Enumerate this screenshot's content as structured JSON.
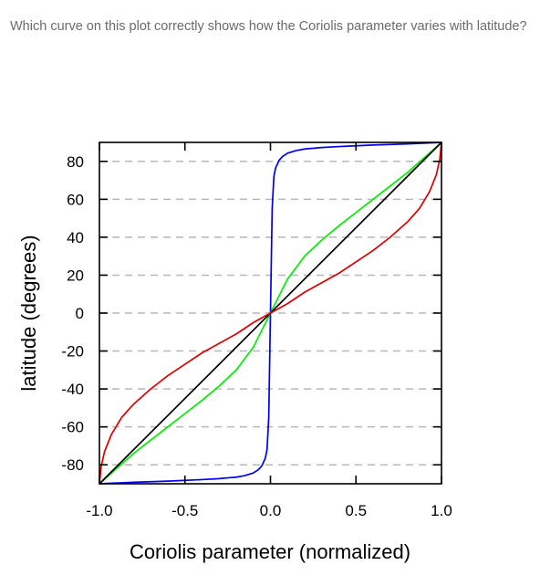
{
  "question": "Which curve on this plot correctly shows how the Coriolis parameter varies with latitude?",
  "chart_data": {
    "type": "line",
    "title": "",
    "xlabel": "Coriolis parameter (normalized)",
    "ylabel": "latitude (degrees)",
    "xlim": [
      -1.0,
      1.0
    ],
    "ylim": [
      -90,
      90
    ],
    "x_ticks": [
      -1.0,
      -0.5,
      0.0,
      0.5,
      1.0
    ],
    "x_tick_labels": [
      "-1.0",
      "-0.5",
      "0.0",
      "0.5",
      "1.0"
    ],
    "y_ticks": [
      -80,
      -60,
      -40,
      -20,
      0,
      20,
      40,
      60,
      80
    ],
    "y_tick_labels": [
      "-80",
      "-60",
      "-40",
      "-20",
      "0",
      "20",
      "40",
      "60",
      "80"
    ],
    "grid": "horizontal dashed",
    "series": [
      {
        "color": "#0000ee",
        "x": [
          -1.0,
          -0.8,
          -0.6,
          -0.4,
          -0.3,
          -0.2,
          -0.15,
          -0.1,
          -0.07,
          -0.05,
          -0.03,
          -0.02,
          -0.01,
          0.0,
          0.01,
          0.02,
          0.03,
          0.05,
          0.07,
          0.1,
          0.15,
          0.2,
          0.3,
          0.4,
          0.6,
          0.8,
          1.0
        ],
        "y": [
          -90,
          -89.2,
          -88.6,
          -87.8,
          -87.3,
          -86.5,
          -85.7,
          -84.3,
          -82.5,
          -80.5,
          -76.5,
          -72,
          -55,
          0,
          55,
          72,
          76.5,
          80.5,
          82.5,
          84.3,
          85.7,
          86.5,
          87.3,
          87.8,
          88.6,
          89.2,
          90
        ]
      },
      {
        "color": "#00ee00",
        "x": [
          -1.0,
          -0.9,
          -0.8,
          -0.7,
          -0.6,
          -0.5,
          -0.4,
          -0.3,
          -0.2,
          -0.1,
          0.0,
          0.1,
          0.2,
          0.3,
          0.4,
          0.5,
          0.6,
          0.7,
          0.8,
          0.9,
          1.0
        ],
        "y": [
          -90,
          -82,
          -74,
          -67,
          -60,
          -53,
          -46,
          -38.5,
          -30,
          -18,
          0,
          18,
          30,
          38.5,
          46,
          53,
          60,
          67,
          74,
          82,
          90
        ]
      },
      {
        "color": "#000000",
        "x": [
          -1.0,
          1.0
        ],
        "y": [
          -90,
          90
        ]
      },
      {
        "color": "#dd0000",
        "x": [
          -1.0,
          -0.99,
          -0.97,
          -0.93,
          -0.87,
          -0.8,
          -0.7,
          -0.6,
          -0.5,
          -0.4,
          -0.3,
          -0.2,
          -0.1,
          0.0,
          0.1,
          0.2,
          0.3,
          0.4,
          0.5,
          0.6,
          0.7,
          0.8,
          0.87,
          0.93,
          0.97,
          0.99,
          1.0
        ],
        "y": [
          -90,
          -81,
          -73,
          -64,
          -55,
          -48,
          -40,
          -33,
          -27,
          -21,
          -16,
          -11,
          -5,
          0,
          5,
          11,
          16,
          21,
          27,
          33,
          40,
          48,
          55,
          64,
          73,
          81,
          90
        ]
      }
    ]
  }
}
